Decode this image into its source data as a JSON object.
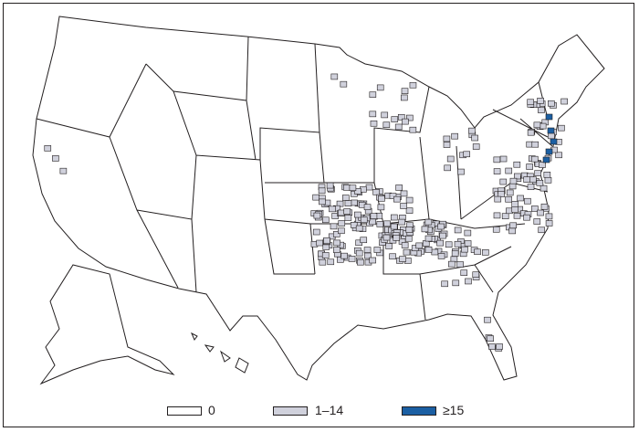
{
  "colors": {
    "zero": "#ffffff",
    "low": "#d0d1dc",
    "high": "#1b5fa3",
    "border": "#231f20"
  },
  "legend": [
    {
      "label": "0",
      "color": "#ffffff"
    },
    {
      "label": "1–14",
      "color": "#d0d1dc"
    },
    {
      "label": "≥15",
      "color": "#1b5fa3"
    }
  ]
}
